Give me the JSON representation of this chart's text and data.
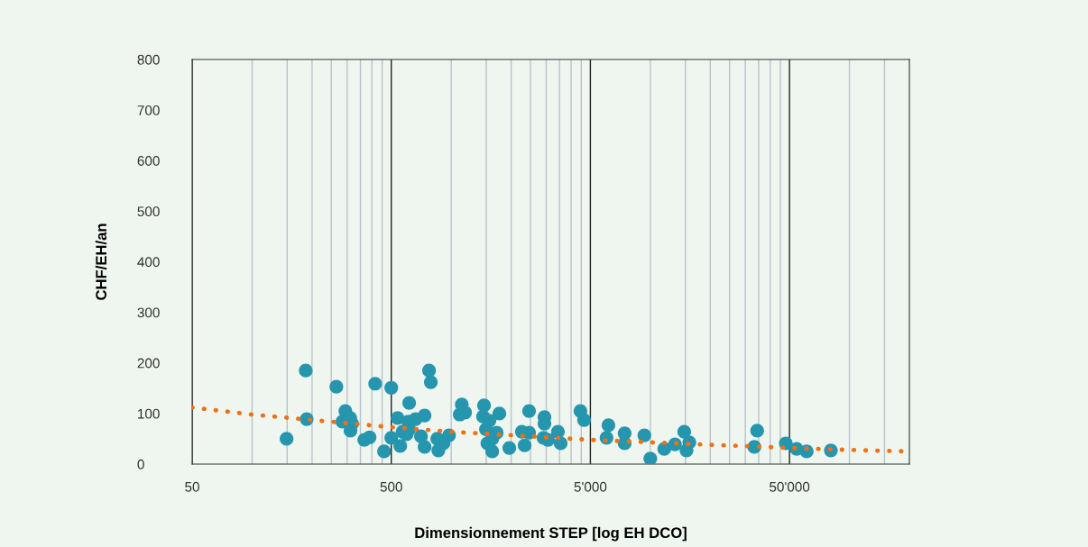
{
  "chart_data": {
    "type": "scatter",
    "xlabel": "Dimensionnement STEP [log EH DCO]",
    "ylabel": "CHF/EH/an",
    "log": "x",
    "grid": "x",
    "marker": "circle",
    "xlim": [
      50,
      200000
    ],
    "xticks": [
      50,
      500,
      {
        "value": 5000,
        "label": "5'000"
      },
      {
        "value": 50000,
        "label": "50'000"
      }
    ],
    "ylim": [
      0,
      800
    ],
    "yticks": [
      0,
      100,
      200,
      300,
      400,
      500,
      600,
      700,
      800
    ],
    "series": [
      {
        "color": "#2596ae",
        "x": [
          149,
          186,
          188,
          265,
          294,
          284,
          311,
          312,
          318,
          366,
          389,
          415,
          460,
          500,
          500,
          538,
          555,
          570,
          597,
          609,
          615,
          615,
          662,
          705,
          735,
          735,
          774,
          790,
          851,
          862,
          914,
          975,
          1104,
          1130,
          1174,
          1462,
          1445,
          1495,
          1556,
          1520,
          1607,
          1607,
          1692,
          1745,
          1958,
          2264,
          2337,
          2461,
          2461,
          2908,
          2940,
          2940,
          3064,
          3436,
          3546,
          4456,
          4650,
          6027,
          6160,
          7430,
          7430,
          9335,
          10000,
          11750,
          13300,
          14800,
          15200,
          15700,
          33300,
          34400,
          47900,
          54300,
          61000,
          80700
        ],
        "values": [
          50,
          185,
          89,
          153,
          105,
          84,
          91,
          66,
          80,
          48,
          53,
          159,
          25,
          151,
          52,
          91,
          36,
          64,
          59,
          84,
          121,
          69,
          89,
          55,
          96,
          34,
          185,
          162,
          50,
          27,
          41,
          57,
          98,
          118,
          102,
          116,
          94,
          69,
          86,
          41,
          50,
          25,
          62,
          100,
          32,
          64,
          37,
          105,
          62,
          52,
          80,
          93,
          48,
          64,
          41,
          105,
          87,
          52,
          77,
          61,
          41,
          57,
          11,
          30,
          39,
          64,
          27,
          43,
          34,
          66,
          41,
          30,
          25,
          27
        ]
      },
      {
        "type": "line",
        "color": "#f07014",
        "line_style": "dotted",
        "marker": "none",
        "x": [
          50,
          100,
          500,
          1000,
          5000,
          10000,
          50000,
          100000,
          200000
        ],
        "values": [
          112,
          98,
          73,
          64,
          48,
          43,
          32,
          28,
          25
        ]
      }
    ]
  }
}
